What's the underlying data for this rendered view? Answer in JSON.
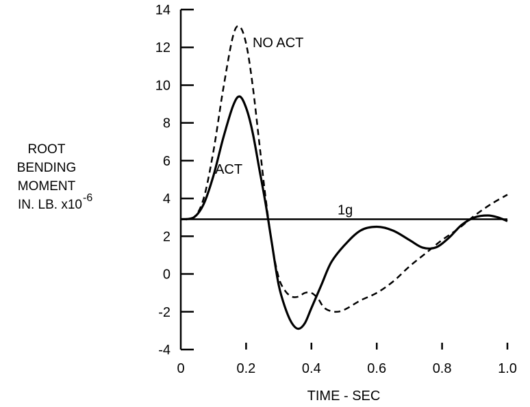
{
  "chart_data": {
    "type": "line",
    "xlabel": "TIME - SEC",
    "ylabel_lines": [
      "ROOT",
      "BENDING",
      "MOMENT",
      "IN. LB. x10"
    ],
    "ylabel_exponent": "-6",
    "xlim": [
      0,
      1.0
    ],
    "ylim": [
      -4,
      14
    ],
    "x_ticks": [
      0,
      0.2,
      0.4,
      0.6,
      0.8,
      1.0
    ],
    "x_tick_labels": [
      "0",
      "0.2",
      "0.4",
      "0.6",
      "0.8",
      "1.0"
    ],
    "y_ticks": [
      -4,
      -2,
      0,
      2,
      4,
      6,
      8,
      10,
      12,
      14
    ],
    "y_tick_labels": [
      "-4",
      "-2",
      "0",
      "2",
      "4",
      "6",
      "8",
      "10",
      "12",
      "14"
    ],
    "grid": false,
    "reference_line": {
      "label": "1g",
      "y": 2.9
    },
    "series": [
      {
        "name": "NO ACT",
        "style": "dashed",
        "color": "#000000",
        "label_at": [
          0.22,
          12.0
        ],
        "points": [
          [
            0,
            2.9
          ],
          [
            0.04,
            3.0
          ],
          [
            0.07,
            4.0
          ],
          [
            0.1,
            6.5
          ],
          [
            0.13,
            9.8
          ],
          [
            0.16,
            12.6
          ],
          [
            0.18,
            13.1
          ],
          [
            0.2,
            12.2
          ],
          [
            0.22,
            10.0
          ],
          [
            0.24,
            7.0
          ],
          [
            0.26,
            4.0
          ],
          [
            0.28,
            1.5
          ],
          [
            0.3,
            -0.2
          ],
          [
            0.32,
            -0.9
          ],
          [
            0.34,
            -1.2
          ],
          [
            0.36,
            -1.2
          ],
          [
            0.38,
            -1.0
          ],
          [
            0.4,
            -1.0
          ],
          [
            0.42,
            -1.3
          ],
          [
            0.44,
            -1.8
          ],
          [
            0.47,
            -2.0
          ],
          [
            0.5,
            -1.9
          ],
          [
            0.55,
            -1.4
          ],
          [
            0.6,
            -1.0
          ],
          [
            0.65,
            -0.4
          ],
          [
            0.7,
            0.4
          ],
          [
            0.75,
            1.1
          ],
          [
            0.8,
            1.8
          ],
          [
            0.85,
            2.4
          ],
          [
            0.9,
            3.1
          ],
          [
            0.95,
            3.7
          ],
          [
            1.0,
            4.2
          ]
        ]
      },
      {
        "name": "ACT",
        "style": "solid",
        "color": "#000000",
        "label_at": [
          0.105,
          5.3
        ],
        "points": [
          [
            0,
            2.9
          ],
          [
            0.04,
            3.0
          ],
          [
            0.07,
            3.7
          ],
          [
            0.1,
            5.2
          ],
          [
            0.13,
            7.2
          ],
          [
            0.16,
            8.9
          ],
          [
            0.18,
            9.4
          ],
          [
            0.2,
            8.8
          ],
          [
            0.22,
            7.5
          ],
          [
            0.24,
            5.6
          ],
          [
            0.26,
            3.7
          ],
          [
            0.28,
            1.5
          ],
          [
            0.3,
            -0.6
          ],
          [
            0.32,
            -1.8
          ],
          [
            0.34,
            -2.6
          ],
          [
            0.36,
            -2.9
          ],
          [
            0.38,
            -2.6
          ],
          [
            0.4,
            -1.8
          ],
          [
            0.43,
            -0.6
          ],
          [
            0.46,
            0.6
          ],
          [
            0.5,
            1.5
          ],
          [
            0.55,
            2.3
          ],
          [
            0.6,
            2.5
          ],
          [
            0.65,
            2.3
          ],
          [
            0.7,
            1.8
          ],
          [
            0.74,
            1.4
          ],
          [
            0.78,
            1.4
          ],
          [
            0.82,
            1.9
          ],
          [
            0.86,
            2.6
          ],
          [
            0.9,
            3.0
          ],
          [
            0.94,
            3.1
          ],
          [
            0.97,
            3.0
          ],
          [
            1.0,
            2.8
          ]
        ]
      }
    ]
  }
}
